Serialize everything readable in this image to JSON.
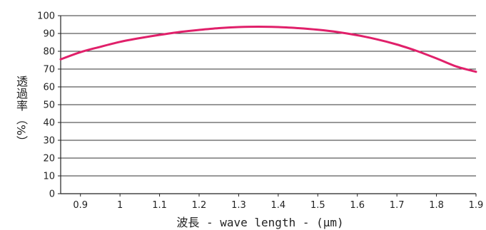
{
  "chart_data": {
    "type": "line",
    "title": "",
    "xlabel": "波長 - wave length - (μm)",
    "ylabel": "透過率",
    "ylabel_unit": "（%）",
    "xlim": [
      0.85,
      1.9
    ],
    "ylim": [
      0,
      100
    ],
    "x_ticks": [
      "0.9",
      "1",
      "1.1",
      "1.2",
      "1.3",
      "1.4",
      "1.5",
      "1.6",
      "1.7",
      "1.8",
      "1.9"
    ],
    "x_tick_values": [
      0.9,
      1.0,
      1.1,
      1.2,
      1.3,
      1.4,
      1.5,
      1.6,
      1.7,
      1.8,
      1.9
    ],
    "y_ticks": [
      "0",
      "10",
      "20",
      "30",
      "40",
      "50",
      "60",
      "70",
      "80",
      "90",
      "100"
    ],
    "y_tick_values": [
      0,
      10,
      20,
      30,
      40,
      50,
      60,
      70,
      80,
      90,
      100
    ],
    "grid": "horizontal",
    "series": [
      {
        "color": "#e0206a",
        "x": [
          0.85,
          0.9,
          0.95,
          1.0,
          1.05,
          1.1,
          1.15,
          1.2,
          1.25,
          1.3,
          1.35,
          1.4,
          1.45,
          1.5,
          1.55,
          1.6,
          1.65,
          1.7,
          1.75,
          1.8,
          1.85,
          1.9
        ],
        "y": [
          75.5,
          79.5,
          82.5,
          85.3,
          87.4,
          89.2,
          90.8,
          92.0,
          93.0,
          93.6,
          93.8,
          93.6,
          93.0,
          92.1,
          90.8,
          89.0,
          86.7,
          83.8,
          80.2,
          76.0,
          71.5,
          68.5
        ]
      }
    ]
  }
}
